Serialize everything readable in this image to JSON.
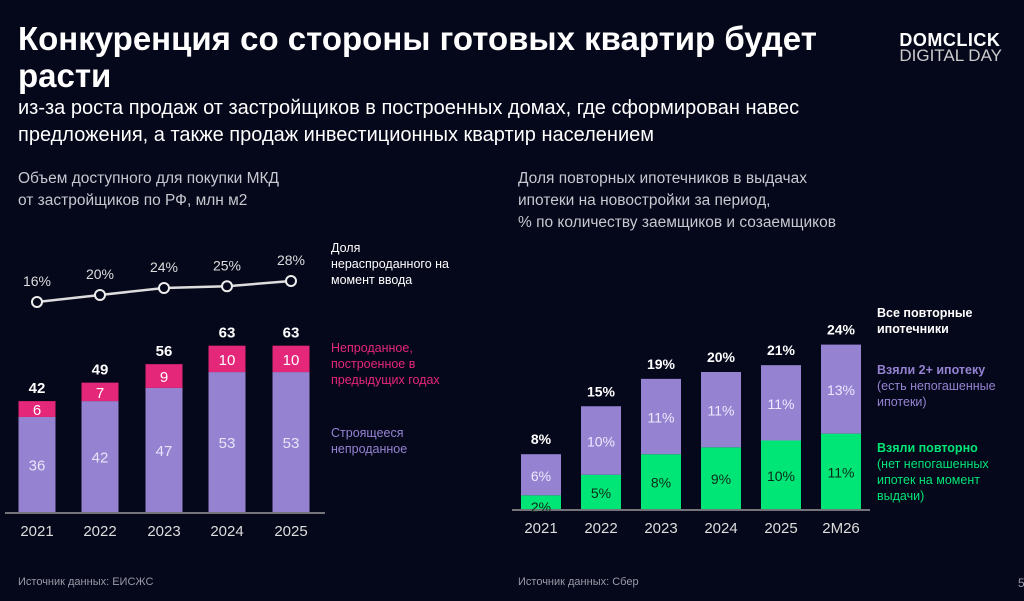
{
  "title": "Конкуренция со стороны готовых квартир будет расти",
  "subtitle": "из-за роста продаж от застройщиков в построенных домах, где сформирован навес предложения, а также продаж инвестиционных квартир населением",
  "logo": {
    "line1": "DOMCLICK",
    "line2": "DIGITAL DAY"
  },
  "page_number": "5",
  "colors": {
    "background": "#05071a",
    "purple": "#9583d2",
    "pink": "#e5277a",
    "green": "#00e676"
  },
  "left": {
    "title_line1": "Объем доступного для покупки МКД",
    "title_line2": "от застройщиков по РФ, млн м2",
    "source": "Источник данных: ЕИСЖС",
    "legend": {
      "line": "Доля нераспроданного на момент ввода",
      "pink": "Непроданное, построенное в предыдущих годах",
      "purple": "Строящееся непроданное"
    }
  },
  "right": {
    "title_line1": "Доля повторных ипотечников в выдачах",
    "title_line2": "ипотеки на новостройки за период,",
    "title_line3": "% по количеству заемщиков и созаемщиков",
    "source": "Источник данных: Сбер",
    "legend": {
      "total": "Все повторные ипотечники",
      "purple_title": "Взяли 2+ ипотеку",
      "purple_sub": "(есть непогашенные ипотеки)",
      "green_title": "Взяли повторно",
      "green_sub": "(нет непогашенных ипотек на момент выдачи)"
    }
  },
  "chart_data": [
    {
      "type": "bar",
      "stacked": true,
      "categories": [
        "2021",
        "2022",
        "2023",
        "2024",
        "2025"
      ],
      "series": [
        {
          "name": "Строящееся непроданное",
          "values": [
            36,
            42,
            47,
            53,
            53
          ]
        },
        {
          "name": "Непроданное, построенное в предыдущих годах",
          "values": [
            6,
            7,
            9,
            10,
            10
          ]
        }
      ],
      "totals": [
        42,
        49,
        56,
        63,
        63
      ],
      "line": {
        "name": "Доля нераспроданного на момент ввода",
        "values": [
          16,
          20,
          24,
          25,
          28
        ],
        "labels": [
          "16%",
          "20%",
          "24%",
          "25%",
          "28%"
        ]
      }
    },
    {
      "type": "bar",
      "stacked": true,
      "categories": [
        "2021",
        "2022",
        "2023",
        "2024",
        "2025",
        "2M26"
      ],
      "series": [
        {
          "name": "Взяли повторно",
          "values": [
            2,
            5,
            8,
            9,
            10,
            11
          ]
        },
        {
          "name": "Взяли 2+ ипотеку",
          "values": [
            6,
            10,
            11,
            11,
            11,
            13
          ]
        }
      ],
      "totals": [
        8,
        15,
        19,
        20,
        21,
        24
      ]
    }
  ]
}
